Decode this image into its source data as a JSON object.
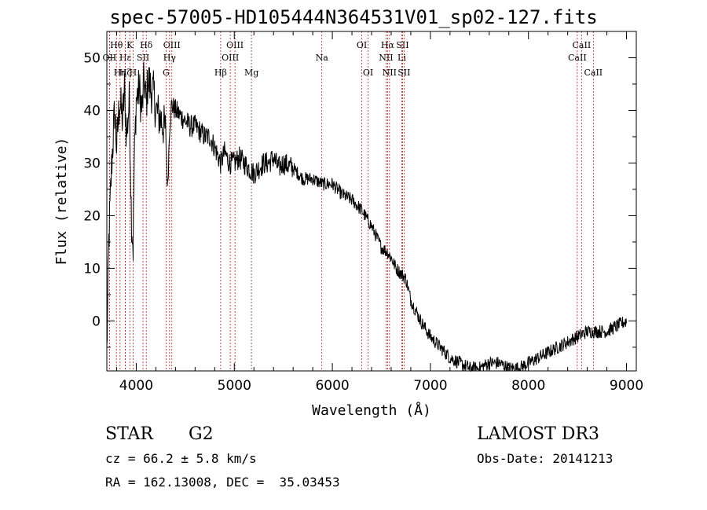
{
  "title": "spec-57005-HD105444N364531V01_sp02-127.fits",
  "info": {
    "object_class": "STAR",
    "subclass": "G2",
    "survey": "LAMOST DR3",
    "cz": "cz = 66.2 ± 5.8 km/s",
    "obs_date": "Obs-Date: 20141213",
    "coords": "RA = 162.13008, DEC =  35.03453"
  },
  "colors": {
    "line_marker": "#b22222",
    "spectrum": "#000000",
    "axes": "#000000"
  },
  "chart_data": {
    "type": "line",
    "xlabel": "Wavelength (Å)",
    "ylabel": "Flux (relative)",
    "xlim": [
      3700,
      9100
    ],
    "ylim": [
      -9.5,
      55
    ],
    "xticks": [
      4000,
      5000,
      6000,
      7000,
      8000,
      9000
    ],
    "yticks": [
      0,
      10,
      20,
      30,
      40,
      50
    ],
    "series": [
      {
        "name": "spectrum",
        "x": [
          3700,
          3720,
          3750,
          3780,
          3800,
          3830,
          3860,
          3880,
          3900,
          3930,
          3950,
          3968,
          3980,
          4000,
          4030,
          4060,
          4080,
          4102,
          4120,
          4150,
          4180,
          4200,
          4230,
          4260,
          4300,
          4320,
          4340,
          4360,
          4400,
          4450,
          4500,
          4550,
          4600,
          4650,
          4700,
          4750,
          4800,
          4861,
          4900,
          4950,
          5000,
          5050,
          5100,
          5150,
          5200,
          5250,
          5300,
          5350,
          5400,
          5450,
          5500,
          5600,
          5700,
          5800,
          5900,
          6000,
          6100,
          6200,
          6300,
          6400,
          6500,
          6563,
          6600,
          6650,
          6700,
          6750,
          6800,
          6850,
          6900,
          7000,
          7100,
          7200,
          7300,
          7400,
          7500,
          7600,
          7700,
          7800,
          7900,
          8000,
          8100,
          8200,
          8300,
          8400,
          8500,
          8600,
          8700,
          8800,
          8900,
          9000
        ],
        "y": [
          -6,
          15,
          30,
          40,
          33,
          42,
          38,
          44,
          35,
          42,
          20,
          14,
          30,
          42,
          44,
          40,
          46,
          41,
          46,
          44,
          43,
          40,
          39,
          38,
          36,
          25,
          37,
          41,
          40,
          39,
          38,
          37,
          37,
          36,
          35,
          35,
          33,
          30,
          32,
          30,
          30,
          31,
          30,
          29,
          28,
          29,
          30,
          30,
          31,
          29,
          30,
          29,
          27,
          27,
          26,
          26,
          24,
          23,
          21,
          18,
          14,
          13,
          12,
          10,
          9,
          8,
          4,
          2,
          0,
          -3,
          -5,
          -7,
          -8,
          -9,
          -9,
          -8,
          -8,
          -9,
          -9,
          -8,
          -7,
          -6,
          -5,
          -4,
          -3,
          -2,
          -2,
          -2,
          -1,
          0
        ]
      }
    ],
    "line_markers": [
      {
        "label": "Hθ",
        "wavelength": 3798,
        "row": 0
      },
      {
        "label": "OII",
        "wavelength": 3727,
        "row": 1
      },
      {
        "label": "Hη",
        "wavelength": 3835,
        "row": 2
      },
      {
        "label": "OII",
        "wavelength": 3727,
        "row": 3
      },
      {
        "label": "K",
        "wavelength": 3934,
        "row": 0
      },
      {
        "label": "Hε",
        "wavelength": 3889,
        "row": 1
      },
      {
        "label": "Hζ",
        "wavelength": 3889,
        "row": 2
      },
      {
        "label": "SII",
        "wavelength": 4069,
        "row": 1
      },
      {
        "label": "H",
        "wavelength": 3968,
        "row": 2
      },
      {
        "label": "Hδ",
        "wavelength": 4102,
        "row": 0
      },
      {
        "label": "OIII",
        "wavelength": 4363,
        "row": 0
      },
      {
        "label": "Hγ",
        "wavelength": 4340,
        "row": 1
      },
      {
        "label": "G",
        "wavelength": 4304,
        "row": 2
      },
      {
        "label": "Hβ",
        "wavelength": 4861,
        "row": 2
      },
      {
        "label": "OIII",
        "wavelength": 5007,
        "row": 0
      },
      {
        "label": "OIII",
        "wavelength": 4959,
        "row": 1
      },
      {
        "label": "Mg",
        "wavelength": 5175,
        "row": 2
      },
      {
        "label": "Na",
        "wavelength": 5893,
        "row": 1
      },
      {
        "label": "OI",
        "wavelength": 6300,
        "row": 0
      },
      {
        "label": "OI",
        "wavelength": 6364,
        "row": 2
      },
      {
        "label": "Hα",
        "wavelength": 6563,
        "row": 0
      },
      {
        "label": "NII",
        "wavelength": 6548,
        "row": 1
      },
      {
        "label": "NII",
        "wavelength": 6583,
        "row": 2
      },
      {
        "label": "SII",
        "wavelength": 6716,
        "row": 0
      },
      {
        "label": "Li",
        "wavelength": 6708,
        "row": 1
      },
      {
        "label": "SII",
        "wavelength": 6731,
        "row": 2
      },
      {
        "label": "CaII",
        "wavelength": 8542,
        "row": 0
      },
      {
        "label": "CaII",
        "wavelength": 8498,
        "row": 1
      },
      {
        "label": "CaII",
        "wavelength": 8662,
        "row": 2
      }
    ]
  }
}
